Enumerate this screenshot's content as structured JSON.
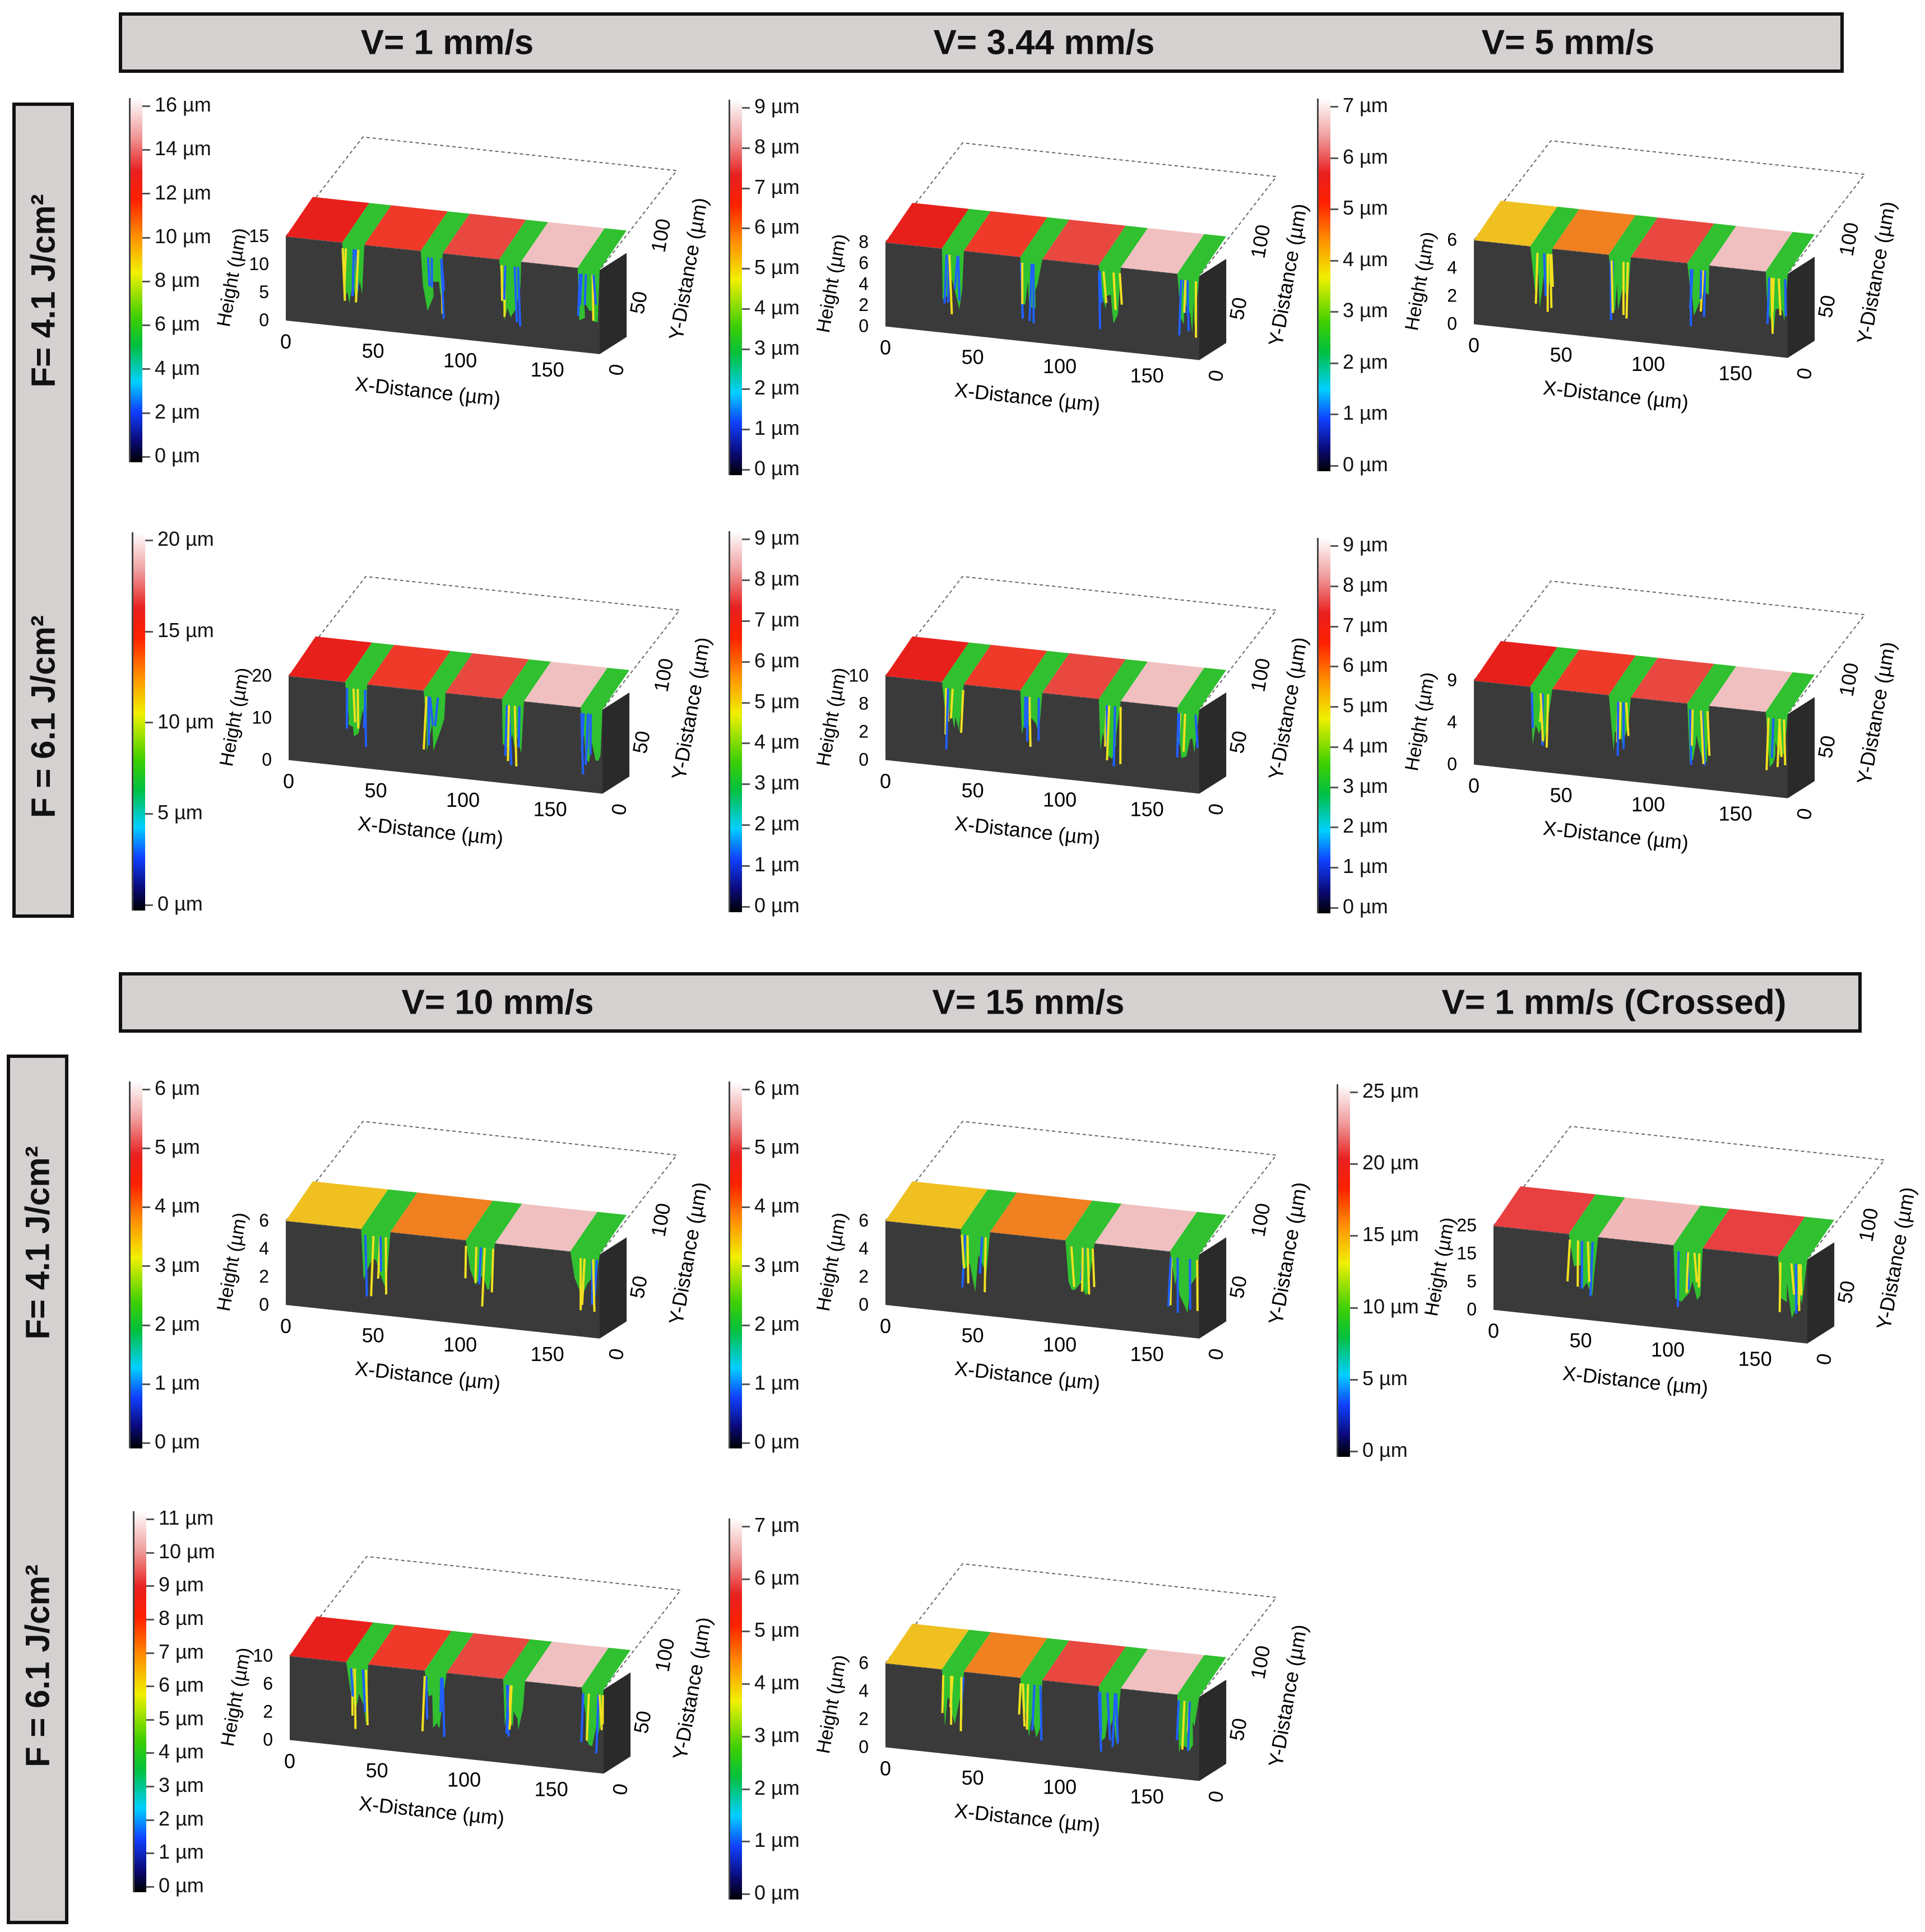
{
  "top_header": {
    "labels": [
      "V= 1 mm/s",
      "V= 3.44 mm/s",
      "V= 5 mm/s"
    ]
  },
  "bottom_header": {
    "labels": [
      "V= 10 mm/s",
      "V= 15 mm/s",
      "V= 1 mm/s (Crossed)"
    ]
  },
  "fluence_labels": [
    "F= 4.1 J/cm²",
    "F = 6.1 J/cm²",
    "F= 4.1 J/cm²",
    "F = 6.1 J/cm²"
  ],
  "axis": {
    "x_label": "X-Distance (µm)",
    "y_label": "Y-Distance (µm)",
    "z_label": "Height (µm)",
    "x_ticks": [
      "0",
      "50",
      "100",
      "150"
    ],
    "y_ticks": [
      "0",
      "50",
      "100"
    ]
  },
  "colors": {
    "header_bg": "#d5d1d1",
    "base": "#3a3a3a",
    "accent_red": "#e8201c"
  },
  "panels": [
    {
      "id": "v1-f41",
      "colorbar": [
        "16 µm",
        "14 µm",
        "12 µm",
        "10 µm",
        "8 µm",
        "6 µm",
        "4 µm",
        "2 µm",
        "0 µm"
      ],
      "height_ticks": [
        "0",
        "5",
        "10",
        "15"
      ],
      "max": 16,
      "stripes": 4,
      "crossed": false
    },
    {
      "id": "v344-f41",
      "colorbar": [
        "9 µm",
        "8 µm",
        "7 µm",
        "6 µm",
        "5 µm",
        "4 µm",
        "3 µm",
        "2 µm",
        "1 µm",
        "0 µm"
      ],
      "height_ticks": [
        "0",
        "2",
        "4",
        "6",
        "8"
      ],
      "max": 9,
      "stripes": 4,
      "crossed": false
    },
    {
      "id": "v5-f41",
      "colorbar": [
        "7 µm",
        "6 µm",
        "5 µm",
        "4 µm",
        "3 µm",
        "2 µm",
        "1 µm",
        "0 µm"
      ],
      "height_ticks": [
        "0",
        "2",
        "4",
        "6"
      ],
      "max": 7,
      "stripes": 4,
      "crossed": false
    },
    {
      "id": "v1-f61",
      "colorbar": [
        "20 µm",
        "15 µm",
        "10 µm",
        "5 µm",
        "0 µm"
      ],
      "height_ticks": [
        "0",
        "10",
        "20"
      ],
      "max": 23,
      "stripes": 4,
      "crossed": false
    },
    {
      "id": "v344-f61",
      "colorbar": [
        "9 µm",
        "8 µm",
        "7 µm",
        "6 µm",
        "5 µm",
        "4 µm",
        "3 µm",
        "2 µm",
        "1 µm",
        "0 µm"
      ],
      "height_ticks": [
        "0",
        "2",
        "8",
        "10"
      ],
      "max": 9,
      "stripes": 4,
      "crossed": false
    },
    {
      "id": "v5-f61",
      "colorbar": [
        "9 µm",
        "8 µm",
        "7 µm",
        "6 µm",
        "5 µm",
        "4 µm",
        "3 µm",
        "2 µm",
        "1 µm",
        "0 µm"
      ],
      "height_ticks": [
        "0",
        "4",
        "9"
      ],
      "max": 9,
      "stripes": 4,
      "crossed": false
    },
    {
      "id": "v10-f41",
      "colorbar": [
        "6 µm",
        "5 µm",
        "4 µm",
        "3 µm",
        "2 µm",
        "1 µm",
        "0 µm"
      ],
      "height_ticks": [
        "0",
        "2",
        "4",
        "6"
      ],
      "max": 6.5,
      "stripes": 3,
      "crossed": false
    },
    {
      "id": "v15-f41",
      "colorbar": [
        "6 µm",
        "5 µm",
        "4 µm",
        "3 µm",
        "2 µm",
        "1 µm",
        "0 µm"
      ],
      "height_ticks": [
        "0",
        "2",
        "4",
        "6"
      ],
      "max": 6.5,
      "stripes": 3,
      "crossed": false
    },
    {
      "id": "v1c-f41",
      "colorbar": [
        "25 µm",
        "20 µm",
        "15 µm",
        "10 µm",
        "5 µm",
        "0 µm"
      ],
      "height_ticks": [
        "0",
        "5",
        "15",
        "25"
      ],
      "max": 26,
      "stripes": 3,
      "crossed": true
    },
    {
      "id": "v10-f61",
      "colorbar": [
        "11 µm",
        "10 µm",
        "9 µm",
        "8 µm",
        "7 µm",
        "6 µm",
        "5 µm",
        "4 µm",
        "3 µm",
        "2 µm",
        "1 µm",
        "0 µm"
      ],
      "height_ticks": [
        "0",
        "2",
        "6",
        "10"
      ],
      "max": 11.5,
      "stripes": 4,
      "crossed": false
    },
    {
      "id": "v15-f61",
      "colorbar": [
        "7 µm",
        "6 µm",
        "5 µm",
        "4 µm",
        "3 µm",
        "2 µm",
        "1 µm",
        "0 µm"
      ],
      "height_ticks": [
        "0",
        "2",
        "4",
        "6"
      ],
      "max": 7,
      "stripes": 4,
      "crossed": false
    }
  ]
}
